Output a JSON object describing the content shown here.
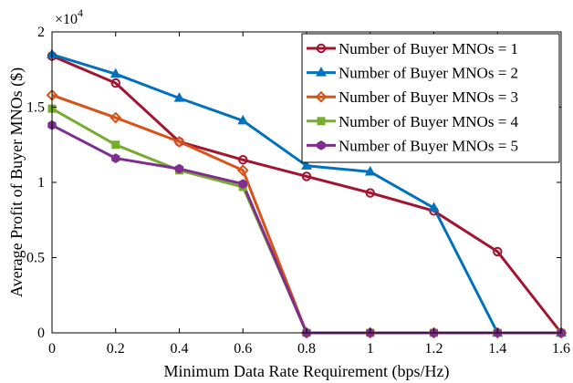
{
  "chart_data": {
    "type": "line",
    "title": "",
    "xlabel": "Minimum Data Rate Requirement (bps/Hz)",
    "ylabel": "Average Profit of Buyer MNOs ($)",
    "y_exponent_label": "×10",
    "y_exponent_power": "4",
    "xlim": [
      0,
      1.6
    ],
    "ylim": [
      0,
      20000
    ],
    "x_ticks": [
      "0",
      "0.2",
      "0.4",
      "0.6",
      "0.8",
      "1",
      "1.2",
      "1.4",
      "1.6"
    ],
    "y_ticks": [
      "0",
      "0.5",
      "1",
      "1.5",
      "2"
    ],
    "grid": false,
    "legend_position": "top-right",
    "series": [
      {
        "name": "Number of Buyer MNOs = 1",
        "color": "#A2142F",
        "marker": "circle",
        "x": [
          0,
          0.2,
          0.4,
          0.6,
          0.8,
          1.0,
          1.2,
          1.4,
          1.6
        ],
        "values": [
          18400,
          16600,
          12700,
          11500,
          10400,
          9300,
          8100,
          5400,
          0
        ]
      },
      {
        "name": "Number of Buyer MNOs = 2",
        "color": "#0072BD",
        "marker": "triangle",
        "x": [
          0,
          0.2,
          0.4,
          0.6,
          0.8,
          1.0,
          1.2,
          1.4,
          1.6
        ],
        "values": [
          18500,
          17200,
          15600,
          14100,
          11100,
          10700,
          8300,
          0,
          0
        ]
      },
      {
        "name": "Number of Buyer MNOs = 3",
        "color": "#D95319",
        "marker": "diamond",
        "x": [
          0,
          0.2,
          0.4,
          0.6,
          0.8,
          1.0,
          1.2,
          1.4,
          1.6
        ],
        "values": [
          15800,
          14300,
          12700,
          10800,
          0,
          0,
          0,
          0,
          0
        ]
      },
      {
        "name": "Number of Buyer MNOs = 4",
        "color": "#77AC30",
        "marker": "square",
        "x": [
          0,
          0.2,
          0.4,
          0.6,
          0.8,
          1.0,
          1.2,
          1.4,
          1.6
        ],
        "values": [
          14900,
          12500,
          10800,
          9700,
          0,
          0,
          0,
          0,
          0
        ]
      },
      {
        "name": "Number of Buyer MNOs = 5",
        "color": "#7E2F8E",
        "marker": "hexagon",
        "x": [
          0,
          0.2,
          0.4,
          0.6,
          0.8,
          1.0,
          1.2,
          1.4,
          1.6
        ],
        "values": [
          13800,
          11600,
          10900,
          9900,
          0,
          0,
          0,
          0,
          0
        ]
      }
    ]
  }
}
